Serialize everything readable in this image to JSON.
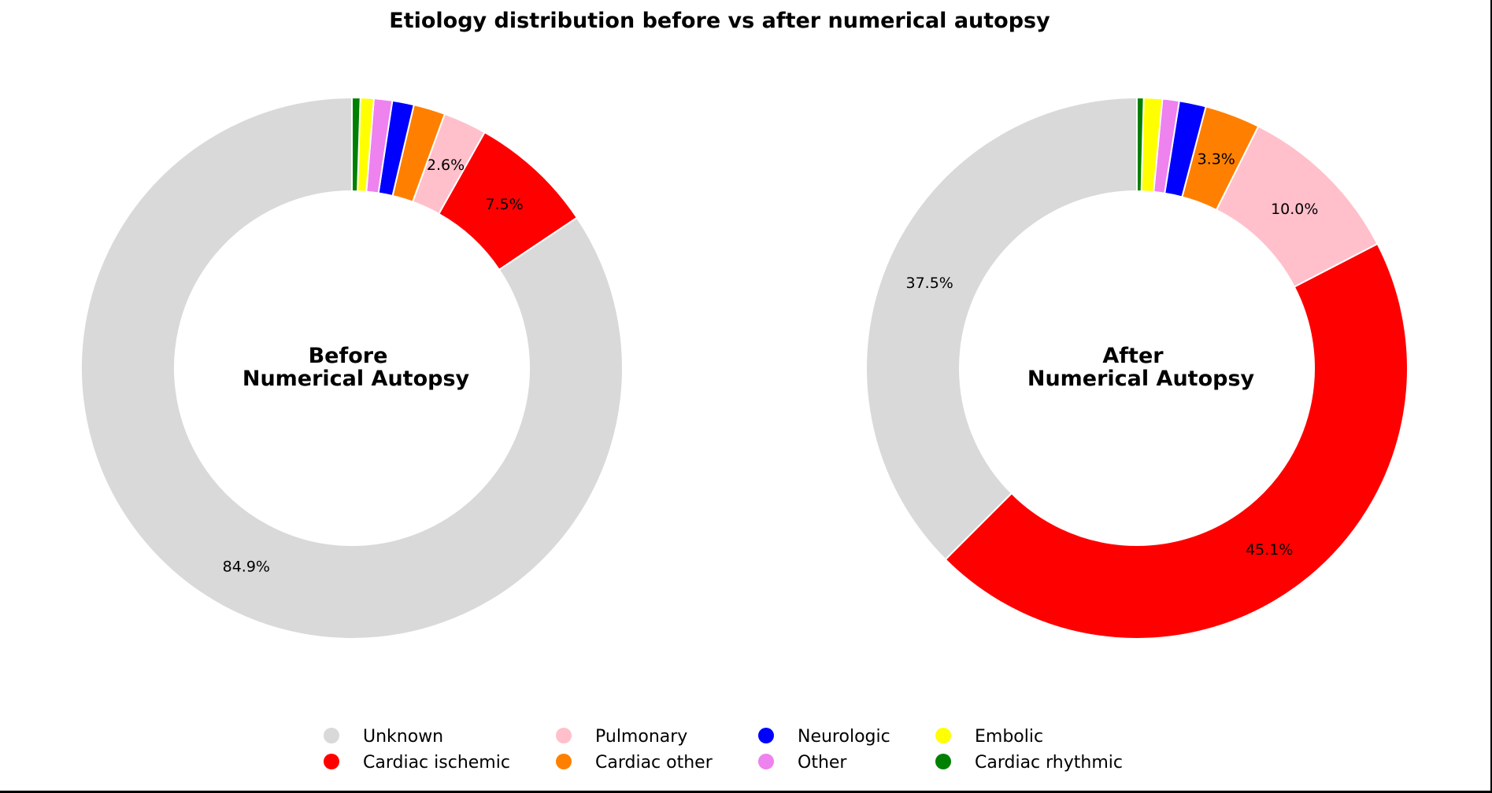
{
  "chart_data": {
    "type": "pie",
    "variant": "donut",
    "title": "Etiology distribution before vs after numerical autopsy",
    "categories": [
      "Unknown",
      "Cardiac ischemic",
      "Pulmonary",
      "Cardiac other",
      "Neurologic",
      "Other",
      "Embolic",
      "Cardiac rhythmic"
    ],
    "colors": [
      "#d9d9d9",
      "#ff0000",
      "#ffc0cb",
      "#ff8000",
      "#0000ff",
      "#ee82ee",
      "#ffff00",
      "#008000"
    ],
    "charts": [
      {
        "name": "before",
        "center_label": [
          "Before",
          "Numerical Autopsy"
        ],
        "values": [
          84.9,
          7.5,
          2.6,
          1.9,
          1.3,
          1.1,
          0.8,
          0.5
        ],
        "shown_labels": [
          "84.9%",
          "7.5%",
          "2.6%",
          null,
          null,
          null,
          null,
          null
        ]
      },
      {
        "name": "after",
        "center_label": [
          "After",
          "Numerical Autopsy"
        ],
        "values": [
          37.5,
          45.1,
          10.0,
          3.3,
          1.6,
          1.0,
          1.1,
          0.4
        ],
        "shown_labels": [
          "37.5%",
          "45.1%",
          "10.0%",
          "3.3%",
          null,
          null,
          null,
          null
        ]
      }
    ],
    "start": "top",
    "direction": "counterclockwise",
    "legend_position": "bottom-center"
  }
}
